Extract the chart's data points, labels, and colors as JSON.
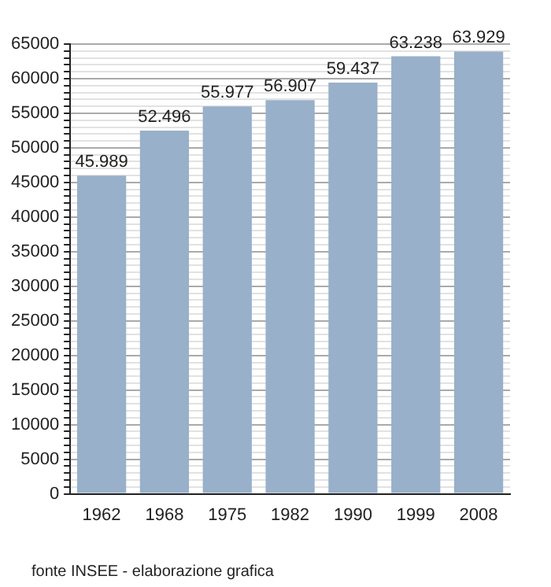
{
  "chart_data": {
    "type": "bar",
    "categories": [
      "1962",
      "1968",
      "1975",
      "1982",
      "1990",
      "1999",
      "2008"
    ],
    "values": [
      45989,
      52496,
      55977,
      56907,
      59437,
      63238,
      63929
    ],
    "value_labels": [
      "45.989",
      "52.496",
      "55.977",
      "56.907",
      "59.437",
      "63.238",
      "63.929"
    ],
    "color": "#98b0c9",
    "ylim": [
      0,
      65000
    ],
    "yticks": [
      0,
      {
        "value": 1000,
        "label": null
      },
      {
        "value": 2000,
        "label": null
      },
      {
        "value": 3000,
        "label": null
      },
      {
        "value": 4000,
        "label": null
      },
      5000,
      {
        "value": 6000,
        "label": null
      },
      {
        "value": 7000,
        "label": null
      },
      {
        "value": 8000,
        "label": null
      },
      {
        "value": 9000,
        "label": null
      },
      10000,
      {
        "value": 11000,
        "label": null
      },
      {
        "value": 12000,
        "label": null
      },
      {
        "value": 13000,
        "label": null
      },
      {
        "value": 14000,
        "label": null
      },
      15000,
      {
        "value": 16000,
        "label": null
      },
      {
        "value": 17000,
        "label": null
      },
      {
        "value": 18000,
        "label": null
      },
      {
        "value": 19000,
        "label": null
      },
      20000,
      {
        "value": 21000,
        "label": null
      },
      {
        "value": 22000,
        "label": null
      },
      {
        "value": 23000,
        "label": null
      },
      {
        "value": 24000,
        "label": null
      },
      25000,
      {
        "value": 26000,
        "label": null
      },
      {
        "value": 27000,
        "label": null
      },
      {
        "value": 28000,
        "label": null
      },
      {
        "value": 29000,
        "label": null
      },
      30000,
      {
        "value": 31000,
        "label": null
      },
      {
        "value": 32000,
        "label": null
      },
      {
        "value": 33000,
        "label": null
      },
      {
        "value": 34000,
        "label": null
      },
      35000,
      {
        "value": 36000,
        "label": null
      },
      {
        "value": 37000,
        "label": null
      },
      {
        "value": 38000,
        "label": null
      },
      {
        "value": 39000,
        "label": null
      },
      40000,
      {
        "value": 41000,
        "label": null
      },
      {
        "value": 42000,
        "label": null
      },
      {
        "value": 43000,
        "label": null
      },
      {
        "value": 44000,
        "label": null
      },
      45000,
      {
        "value": 46000,
        "label": null
      },
      {
        "value": 47000,
        "label": null
      },
      {
        "value": 48000,
        "label": null
      },
      {
        "value": 49000,
        "label": null
      },
      50000,
      {
        "value": 51000,
        "label": null
      },
      {
        "value": 52000,
        "label": null
      },
      {
        "value": 53000,
        "label": null
      },
      {
        "value": 54000,
        "label": null
      },
      55000,
      {
        "value": 56000,
        "label": null
      },
      {
        "value": 57000,
        "label": null
      },
      {
        "value": 58000,
        "label": null
      },
      {
        "value": 59000,
        "label": null
      },
      60000,
      {
        "value": 61000,
        "label": null
      },
      {
        "value": 62000,
        "label": null
      },
      {
        "value": 63000,
        "label": null
      },
      {
        "value": 64000,
        "label": null
      },
      65000
    ],
    "grid": "y",
    "legend": false,
    "annotations": [
      "fonte INSEE - elaborazione grafica"
    ]
  }
}
